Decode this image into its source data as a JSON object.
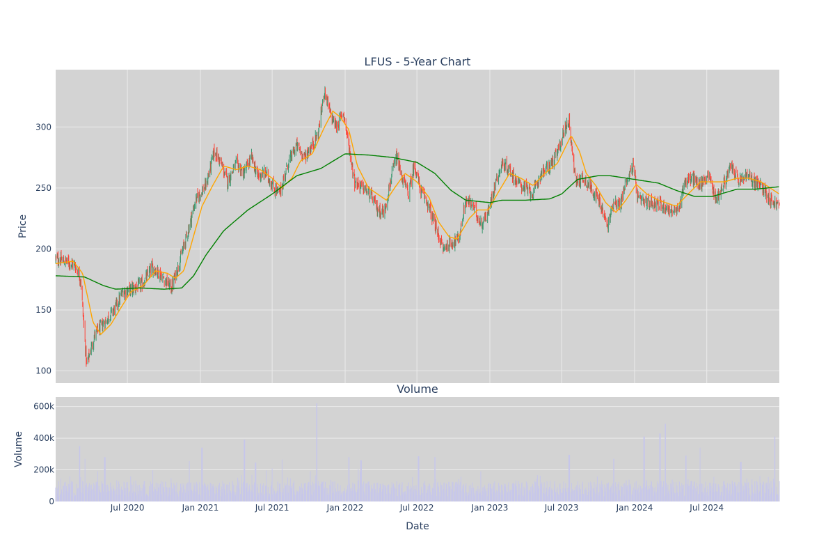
{
  "chart_data": [
    {
      "type": "candlestick",
      "title": "LFUS - 5-Year Chart",
      "ylabel": "Price",
      "ylim": [
        90,
        347
      ],
      "y_ticks": [
        100,
        150,
        200,
        250,
        300
      ],
      "x_range": [
        "2020-01-02",
        "2024-12-31"
      ],
      "grid": true,
      "colors": {
        "plot_bg": "#d3d3d3",
        "up": "#3d9970",
        "down": "#ff4136",
        "ma_short": "#ffa500",
        "ma_long": "#008000",
        "text": "#2a3f5f",
        "grid": "#ebebeb"
      },
      "price_anchors": [
        [
          "2020-01-02",
          192
        ],
        [
          "2020-01-25",
          190
        ],
        [
          "2020-02-20",
          187
        ],
        [
          "2020-03-05",
          175
        ],
        [
          "2020-03-20",
          105
        ],
        [
          "2020-04-10",
          130
        ],
        [
          "2020-05-05",
          140
        ],
        [
          "2020-06-01",
          152
        ],
        [
          "2020-06-20",
          165
        ],
        [
          "2020-07-20",
          168
        ],
        [
          "2020-08-10",
          172
        ],
        [
          "2020-09-01",
          185
        ],
        [
          "2020-09-20",
          180
        ],
        [
          "2020-10-20",
          168
        ],
        [
          "2020-11-10",
          190
        ],
        [
          "2020-12-01",
          215
        ],
        [
          "2020-12-20",
          240
        ],
        [
          "2021-01-15",
          252
        ],
        [
          "2021-02-05",
          280
        ],
        [
          "2021-02-20",
          272
        ],
        [
          "2021-03-10",
          255
        ],
        [
          "2021-04-01",
          270
        ],
        [
          "2021-04-20",
          262
        ],
        [
          "2021-05-10",
          275
        ],
        [
          "2021-05-25",
          260
        ],
        [
          "2021-06-15",
          262
        ],
        [
          "2021-07-05",
          250
        ],
        [
          "2021-07-20",
          245
        ],
        [
          "2021-08-10",
          270
        ],
        [
          "2021-09-01",
          285
        ],
        [
          "2021-09-20",
          275
        ],
        [
          "2021-10-10",
          285
        ],
        [
          "2021-10-25",
          295
        ],
        [
          "2021-11-10",
          330
        ],
        [
          "2021-11-25",
          310
        ],
        [
          "2021-12-10",
          300
        ],
        [
          "2021-12-28",
          312
        ],
        [
          "2022-01-10",
          285
        ],
        [
          "2022-01-25",
          255
        ],
        [
          "2022-02-15",
          250
        ],
        [
          "2022-03-05",
          245
        ],
        [
          "2022-03-25",
          232
        ],
        [
          "2022-04-10",
          230
        ],
        [
          "2022-04-25",
          255
        ],
        [
          "2022-05-10",
          275
        ],
        [
          "2022-05-25",
          258
        ],
        [
          "2022-06-10",
          245
        ],
        [
          "2022-06-25",
          270
        ],
        [
          "2022-07-10",
          248
        ],
        [
          "2022-07-25",
          240
        ],
        [
          "2022-08-15",
          220
        ],
        [
          "2022-09-05",
          200
        ],
        [
          "2022-09-25",
          205
        ],
        [
          "2022-10-15",
          208
        ],
        [
          "2022-11-01",
          240
        ],
        [
          "2022-11-20",
          235
        ],
        [
          "2022-12-10",
          220
        ],
        [
          "2022-12-28",
          230
        ],
        [
          "2023-01-15",
          255
        ],
        [
          "2023-02-01",
          270
        ],
        [
          "2023-02-20",
          265
        ],
        [
          "2023-03-10",
          255
        ],
        [
          "2023-03-30",
          250
        ],
        [
          "2023-04-20",
          245
        ],
        [
          "2023-05-10",
          262
        ],
        [
          "2023-06-01",
          268
        ],
        [
          "2023-06-20",
          278
        ],
        [
          "2023-07-10",
          300
        ],
        [
          "2023-07-20",
          305
        ],
        [
          "2023-08-05",
          255
        ],
        [
          "2023-08-25",
          258
        ],
        [
          "2023-09-15",
          250
        ],
        [
          "2023-10-05",
          238
        ],
        [
          "2023-10-25",
          218
        ],
        [
          "2023-11-10",
          240
        ],
        [
          "2023-11-25",
          235
        ],
        [
          "2023-12-10",
          255
        ],
        [
          "2023-12-28",
          268
        ],
        [
          "2024-01-10",
          240
        ],
        [
          "2024-01-30",
          238
        ],
        [
          "2024-02-20",
          238
        ],
        [
          "2024-03-10",
          236
        ],
        [
          "2024-03-30",
          232
        ],
        [
          "2024-04-20",
          230
        ],
        [
          "2024-05-05",
          255
        ],
        [
          "2024-05-25",
          258
        ],
        [
          "2024-06-15",
          252
        ],
        [
          "2024-07-05",
          262
        ],
        [
          "2024-07-25",
          240
        ],
        [
          "2024-08-15",
          255
        ],
        [
          "2024-09-01",
          268
        ],
        [
          "2024-09-20",
          255
        ],
        [
          "2024-10-10",
          260
        ],
        [
          "2024-10-30",
          255
        ],
        [
          "2024-11-20",
          250
        ],
        [
          "2024-12-10",
          240
        ],
        [
          "2024-12-31",
          235
        ]
      ],
      "ma_short_anchors": [
        [
          "2020-01-02",
          188
        ],
        [
          "2020-02-15",
          190
        ],
        [
          "2020-03-10",
          180
        ],
        [
          "2020-04-05",
          140
        ],
        [
          "2020-04-25",
          130
        ],
        [
          "2020-05-20",
          138
        ],
        [
          "2020-06-15",
          152
        ],
        [
          "2020-07-10",
          165
        ],
        [
          "2020-08-10",
          170
        ],
        [
          "2020-09-10",
          182
        ],
        [
          "2020-10-10",
          180
        ],
        [
          "2020-10-30",
          176
        ],
        [
          "2020-11-20",
          182
        ],
        [
          "2020-12-10",
          205
        ],
        [
          "2021-01-05",
          235
        ],
        [
          "2021-02-01",
          252
        ],
        [
          "2021-03-01",
          268
        ],
        [
          "2021-04-01",
          265
        ],
        [
          "2021-05-01",
          268
        ],
        [
          "2021-06-01",
          265
        ],
        [
          "2021-07-01",
          258
        ],
        [
          "2021-07-25",
          250
        ],
        [
          "2021-08-20",
          258
        ],
        [
          "2021-09-10",
          272
        ],
        [
          "2021-10-10",
          278
        ],
        [
          "2021-11-10",
          300
        ],
        [
          "2021-12-01",
          313
        ],
        [
          "2021-12-20",
          308
        ],
        [
          "2022-01-10",
          298
        ],
        [
          "2022-02-01",
          268
        ],
        [
          "2022-03-01",
          250
        ],
        [
          "2022-04-15",
          240
        ],
        [
          "2022-05-10",
          252
        ],
        [
          "2022-06-01",
          262
        ],
        [
          "2022-07-01",
          255
        ],
        [
          "2022-08-01",
          242
        ],
        [
          "2022-08-25",
          222
        ],
        [
          "2022-09-20",
          210
        ],
        [
          "2022-10-10",
          208
        ],
        [
          "2022-11-10",
          225
        ],
        [
          "2022-12-01",
          232
        ],
        [
          "2022-12-28",
          232
        ],
        [
          "2023-01-25",
          248
        ],
        [
          "2023-02-20",
          262
        ],
        [
          "2023-03-20",
          258
        ],
        [
          "2023-04-20",
          252
        ],
        [
          "2023-05-20",
          262
        ],
        [
          "2023-06-20",
          270
        ],
        [
          "2023-07-25",
          293
        ],
        [
          "2023-08-15",
          280
        ],
        [
          "2023-09-01",
          262
        ],
        [
          "2023-09-25",
          252
        ],
        [
          "2023-10-20",
          238
        ],
        [
          "2023-11-15",
          230
        ],
        [
          "2023-12-10",
          240
        ],
        [
          "2024-01-05",
          253
        ],
        [
          "2024-02-01",
          245
        ],
        [
          "2024-03-01",
          240
        ],
        [
          "2024-04-15",
          235
        ],
        [
          "2024-05-15",
          245
        ],
        [
          "2024-06-15",
          255
        ],
        [
          "2024-07-15",
          255
        ],
        [
          "2024-08-15",
          255
        ],
        [
          "2024-09-15",
          258
        ],
        [
          "2024-10-15",
          258
        ],
        [
          "2024-11-15",
          255
        ],
        [
          "2024-12-31",
          245
        ]
      ],
      "ma_long_anchors": [
        [
          "2020-01-02",
          178
        ],
        [
          "2020-03-15",
          177
        ],
        [
          "2020-05-01",
          170
        ],
        [
          "2020-06-01",
          167
        ],
        [
          "2020-08-01",
          168
        ],
        [
          "2020-10-01",
          167
        ],
        [
          "2020-11-15",
          168
        ],
        [
          "2020-12-15",
          178
        ],
        [
          "2021-01-15",
          195
        ],
        [
          "2021-03-01",
          215
        ],
        [
          "2021-05-01",
          232
        ],
        [
          "2021-07-01",
          245
        ],
        [
          "2021-09-01",
          260
        ],
        [
          "2021-11-01",
          266
        ],
        [
          "2022-01-01",
          278
        ],
        [
          "2022-03-01",
          277
        ],
        [
          "2022-05-01",
          275
        ],
        [
          "2022-07-01",
          271
        ],
        [
          "2022-08-15",
          262
        ],
        [
          "2022-09-25",
          248
        ],
        [
          "2022-11-01",
          240
        ],
        [
          "2023-01-01",
          238
        ],
        [
          "2023-02-01",
          240
        ],
        [
          "2023-04-01",
          240
        ],
        [
          "2023-06-01",
          241
        ],
        [
          "2023-07-01",
          245
        ],
        [
          "2023-08-10",
          257
        ],
        [
          "2023-10-01",
          260
        ],
        [
          "2023-11-01",
          260
        ],
        [
          "2024-01-01",
          257
        ],
        [
          "2024-03-01",
          254
        ],
        [
          "2024-04-15",
          248
        ],
        [
          "2024-06-01",
          243
        ],
        [
          "2024-07-15",
          243
        ],
        [
          "2024-09-15",
          249
        ],
        [
          "2024-11-01",
          249
        ],
        [
          "2024-12-31",
          251
        ]
      ]
    },
    {
      "type": "bar",
      "title": "Volume",
      "xlabel": "Date",
      "ylabel": "Volume",
      "ylim": [
        0,
        660000
      ],
      "y_ticks": [
        0,
        200000,
        400000,
        600000
      ],
      "y_tick_labels": [
        "0",
        "200k",
        "400k",
        "600k"
      ],
      "x_ticks": [
        "2020-07-01",
        "2021-01-01",
        "2021-07-01",
        "2022-01-01",
        "2022-07-01",
        "2023-01-01",
        "2023-07-01",
        "2024-01-01",
        "2024-07-01"
      ],
      "x_tick_labels": [
        "Jul 2020",
        "Jan 2021",
        "Jul 2021",
        "Jan 2022",
        "Jul 2022",
        "Jan 2023",
        "Jul 2023",
        "Jan 2024",
        "Jul 2024"
      ],
      "base_volume": 90000,
      "colors": {
        "bar": "#c7c7ea"
      },
      "volume_spikes": [
        [
          "2020-03-02",
          350000
        ],
        [
          "2020-03-15",
          270000
        ],
        [
          "2020-05-05",
          280000
        ],
        [
          "2020-12-05",
          255000
        ],
        [
          "2021-01-05",
          340000
        ],
        [
          "2021-04-22",
          390000
        ],
        [
          "2021-05-20",
          245000
        ],
        [
          "2021-07-25",
          265000
        ],
        [
          "2021-10-22",
          620000
        ],
        [
          "2022-01-10",
          280000
        ],
        [
          "2022-02-10",
          260000
        ],
        [
          "2022-07-05",
          285000
        ],
        [
          "2022-08-15",
          280000
        ],
        [
          "2023-07-20",
          295000
        ],
        [
          "2023-11-10",
          270000
        ],
        [
          "2024-01-25",
          410000
        ],
        [
          "2024-03-05",
          430000
        ],
        [
          "2024-03-18",
          490000
        ],
        [
          "2024-05-10",
          290000
        ],
        [
          "2024-06-15",
          340000
        ],
        [
          "2024-09-25",
          250000
        ],
        [
          "2024-12-20",
          410000
        ]
      ]
    }
  ]
}
